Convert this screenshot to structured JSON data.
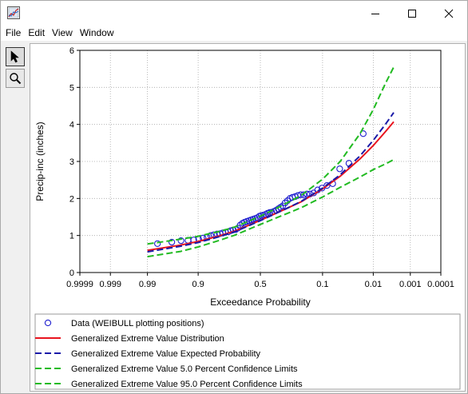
{
  "menu": [
    "File",
    "Edit",
    "View",
    "Window"
  ],
  "icons": {
    "app": "chart-window-icon",
    "minimize": "minimize-icon",
    "maximize": "maximize-icon",
    "close": "close-icon",
    "select_tool": "pointer-arrow-icon",
    "zoom_tool": "magnifier-icon"
  },
  "chart_data": {
    "type": "line",
    "xlabel": "Exceedance Probability",
    "ylabel": "Precip-inc (inches)",
    "x_scale": "normal-probability (reversed)",
    "xlim": [
      0.9999,
      0.0001
    ],
    "ylim": [
      0,
      6
    ],
    "x_ticks": [
      {
        "value": 0.9999,
        "label": "0.9999"
      },
      {
        "value": 0.999,
        "label": "0.999"
      },
      {
        "value": 0.99,
        "label": "0.99"
      },
      {
        "value": 0.9,
        "label": "0.9"
      },
      {
        "value": 0.5,
        "label": "0.5"
      },
      {
        "value": 0.1,
        "label": "0.1"
      },
      {
        "value": 0.01,
        "label": "0.01"
      },
      {
        "value": 0.001,
        "label": "0.001"
      },
      {
        "value": 0.0001,
        "label": "0.0001"
      }
    ],
    "y_ticks": [
      0,
      1,
      2,
      3,
      4,
      5,
      6
    ],
    "grid": true,
    "legend_position": "bottom",
    "series": [
      {
        "name": "Data (WEIBULL plotting positions)",
        "kind": "markers",
        "color": "#1f1fcf",
        "points": [
          [
            0.983,
            0.78
          ],
          [
            0.966,
            0.82
          ],
          [
            0.949,
            0.86
          ],
          [
            0.932,
            0.87
          ],
          [
            0.915,
            0.88
          ],
          [
            0.898,
            0.9
          ],
          [
            0.881,
            0.93
          ],
          [
            0.864,
            0.95
          ],
          [
            0.847,
            1.0
          ],
          [
            0.831,
            1.02
          ],
          [
            0.814,
            1.04
          ],
          [
            0.797,
            1.05
          ],
          [
            0.78,
            1.07
          ],
          [
            0.763,
            1.09
          ],
          [
            0.746,
            1.1
          ],
          [
            0.729,
            1.13
          ],
          [
            0.712,
            1.15
          ],
          [
            0.695,
            1.16
          ],
          [
            0.678,
            1.2
          ],
          [
            0.661,
            1.28
          ],
          [
            0.644,
            1.33
          ],
          [
            0.627,
            1.36
          ],
          [
            0.61,
            1.38
          ],
          [
            0.593,
            1.4
          ],
          [
            0.576,
            1.42
          ],
          [
            0.559,
            1.44
          ],
          [
            0.542,
            1.46
          ],
          [
            0.525,
            1.48
          ],
          [
            0.508,
            1.52
          ],
          [
            0.492,
            1.54
          ],
          [
            0.475,
            1.55
          ],
          [
            0.458,
            1.57
          ],
          [
            0.441,
            1.6
          ],
          [
            0.424,
            1.62
          ],
          [
            0.407,
            1.63
          ],
          [
            0.39,
            1.65
          ],
          [
            0.373,
            1.68
          ],
          [
            0.356,
            1.72
          ],
          [
            0.339,
            1.76
          ],
          [
            0.322,
            1.8
          ],
          [
            0.305,
            1.88
          ],
          [
            0.288,
            1.94
          ],
          [
            0.271,
            2.0
          ],
          [
            0.254,
            2.03
          ],
          [
            0.237,
            2.05
          ],
          [
            0.22,
            2.08
          ],
          [
            0.203,
            2.1
          ],
          [
            0.186,
            2.1
          ],
          [
            0.169,
            2.12
          ],
          [
            0.153,
            2.12
          ],
          [
            0.136,
            2.15
          ],
          [
            0.119,
            2.23
          ],
          [
            0.102,
            2.28
          ],
          [
            0.085,
            2.35
          ],
          [
            0.068,
            2.4
          ],
          [
            0.051,
            2.8
          ],
          [
            0.034,
            2.95
          ],
          [
            0.017,
            3.75
          ]
        ]
      },
      {
        "name": "Generalized Extreme Value Distribution",
        "kind": "line",
        "color": "#e8141e",
        "dash": "solid",
        "points": [
          [
            0.99,
            0.6
          ],
          [
            0.95,
            0.74
          ],
          [
            0.9,
            0.84
          ],
          [
            0.8,
            0.99
          ],
          [
            0.7,
            1.12
          ],
          [
            0.5,
            1.41
          ],
          [
            0.3,
            1.72
          ],
          [
            0.2,
            1.91
          ],
          [
            0.1,
            2.26
          ],
          [
            0.05,
            2.6
          ],
          [
            0.02,
            3.07
          ],
          [
            0.01,
            3.43
          ],
          [
            0.005,
            3.8
          ],
          [
            0.003,
            4.07
          ]
        ]
      },
      {
        "name": "Generalized Extreme Value Expected Probability",
        "kind": "line",
        "color": "#1a1aa8",
        "dash": "dashed",
        "points": [
          [
            0.99,
            0.56
          ],
          [
            0.95,
            0.71
          ],
          [
            0.9,
            0.81
          ],
          [
            0.8,
            0.97
          ],
          [
            0.7,
            1.1
          ],
          [
            0.5,
            1.4
          ],
          [
            0.3,
            1.72
          ],
          [
            0.2,
            1.92
          ],
          [
            0.1,
            2.28
          ],
          [
            0.05,
            2.64
          ],
          [
            0.02,
            3.15
          ],
          [
            0.01,
            3.57
          ],
          [
            0.005,
            4.0
          ],
          [
            0.003,
            4.32
          ]
        ]
      },
      {
        "name": "Generalized Extreme Value 5.0 Percent Confidence Limits",
        "kind": "line",
        "color": "#22bb22",
        "dash": "dashed",
        "points": [
          [
            0.99,
            0.77
          ],
          [
            0.95,
            0.9
          ],
          [
            0.9,
            0.98
          ],
          [
            0.8,
            1.11
          ],
          [
            0.7,
            1.23
          ],
          [
            0.5,
            1.52
          ],
          [
            0.3,
            1.86
          ],
          [
            0.2,
            2.08
          ],
          [
            0.1,
            2.52
          ],
          [
            0.05,
            3.0
          ],
          [
            0.02,
            3.75
          ],
          [
            0.01,
            4.4
          ],
          [
            0.005,
            5.1
          ],
          [
            0.003,
            5.55
          ]
        ]
      },
      {
        "name": "Generalized Extreme Value 95.0 Percent Confidence Limits",
        "kind": "line",
        "color": "#22bb22",
        "dash": "dashed",
        "points": [
          [
            0.99,
            0.43
          ],
          [
            0.95,
            0.57
          ],
          [
            0.9,
            0.69
          ],
          [
            0.8,
            0.87
          ],
          [
            0.7,
            1.01
          ],
          [
            0.5,
            1.3
          ],
          [
            0.3,
            1.58
          ],
          [
            0.2,
            1.75
          ],
          [
            0.1,
            2.04
          ],
          [
            0.05,
            2.3
          ],
          [
            0.02,
            2.58
          ],
          [
            0.01,
            2.78
          ],
          [
            0.005,
            2.93
          ],
          [
            0.003,
            3.05
          ]
        ]
      }
    ]
  }
}
